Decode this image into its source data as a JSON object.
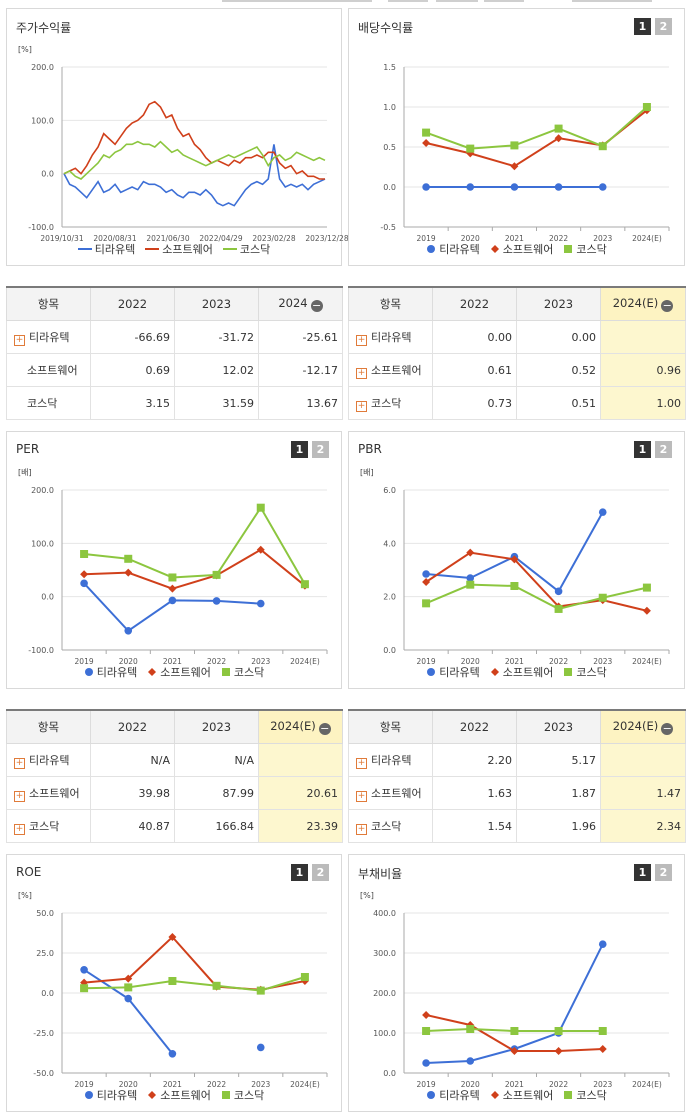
{
  "colors": {
    "tiratech": "#3d6fd6",
    "software": "#d0401b",
    "kosdaq": "#8cc63f"
  },
  "series_names": [
    "티라유텍",
    "소프트웨어",
    "코스닥"
  ],
  "stock_return": {
    "title": "주가수익률",
    "unit": "[%]",
    "yticks": [
      "200.0",
      "100.0",
      "0.0",
      "-100.0"
    ],
    "xticks": [
      "2019/10/31",
      "2020/08/31",
      "2021/06/30",
      "2022/04/29",
      "2023/02/28",
      "2023/12/28"
    ]
  },
  "dividend": {
    "title": "배당수익률",
    "btn1": "1",
    "btn2": "2",
    "yticks": [
      "1.5",
      "1.0",
      "0.5",
      "0.0",
      "-0.5"
    ],
    "xticks": [
      "2019",
      "2020",
      "2021",
      "2022",
      "2023",
      "2024(E)"
    ]
  },
  "per": {
    "title": "PER",
    "unit": "[배]",
    "btn1": "1",
    "btn2": "2",
    "yticks": [
      "200.0",
      "100.0",
      "0.0",
      "-100.0"
    ],
    "xticks": [
      "2019",
      "2020",
      "2021",
      "2022",
      "2023",
      "2024(E)"
    ]
  },
  "pbr": {
    "title": "PBR",
    "unit": "[배]",
    "btn1": "1",
    "btn2": "2",
    "yticks": [
      "6.0",
      "4.0",
      "2.0",
      "0.0"
    ],
    "xticks": [
      "2019",
      "2020",
      "2021",
      "2022",
      "2023",
      "2024(E)"
    ]
  },
  "roe": {
    "title": "ROE",
    "unit": "[%]",
    "btn1": "1",
    "btn2": "2",
    "yticks": [
      "50.0",
      "25.0",
      "0.0",
      "-25.0",
      "-50.0"
    ],
    "xticks": [
      "2019",
      "2020",
      "2021",
      "2022",
      "2023",
      "2024(E)"
    ]
  },
  "debt": {
    "title": "부채비율",
    "unit": "[%]",
    "btn1": "1",
    "btn2": "2",
    "yticks": [
      "400.0",
      "300.0",
      "200.0",
      "100.0",
      "0.0"
    ],
    "xticks": [
      "2019",
      "2020",
      "2021",
      "2022",
      "2023",
      "2024(E)"
    ]
  },
  "tables": {
    "t1": {
      "head": [
        "항목",
        "2022",
        "2023",
        "2024"
      ],
      "rows": [
        [
          "티라유텍",
          "-66.69",
          "-31.72",
          "-25.61"
        ],
        [
          "소프트웨어",
          "0.69",
          "12.02",
          "-12.17"
        ],
        [
          "코스닥",
          "3.15",
          "31.59",
          "13.67"
        ]
      ]
    },
    "t2": {
      "head": [
        "항목",
        "2022",
        "2023",
        "2024(E)"
      ],
      "rows": [
        [
          "티라유텍",
          "0.00",
          "0.00",
          ""
        ],
        [
          "소프트웨어",
          "0.61",
          "0.52",
          "0.96"
        ],
        [
          "코스닥",
          "0.73",
          "0.51",
          "1.00"
        ]
      ]
    },
    "t3": {
      "head": [
        "항목",
        "2022",
        "2023",
        "2024(E)"
      ],
      "rows": [
        [
          "티라유텍",
          "N/A",
          "N/A",
          ""
        ],
        [
          "소프트웨어",
          "39.98",
          "87.99",
          "20.61"
        ],
        [
          "코스닥",
          "40.87",
          "166.84",
          "23.39"
        ]
      ]
    },
    "t4": {
      "head": [
        "항목",
        "2022",
        "2023",
        "2024(E)"
      ],
      "rows": [
        [
          "티라유텍",
          "2.20",
          "5.17",
          ""
        ],
        [
          "소프트웨어",
          "1.63",
          "1.87",
          "1.47"
        ],
        [
          "코스닥",
          "1.54",
          "1.96",
          "2.34"
        ]
      ]
    }
  },
  "chart_data": [
    {
      "type": "line",
      "title": "주가수익률",
      "ylabel": "[%]",
      "ylim": [
        -100,
        200
      ],
      "x_ticks": [
        "2019/10/31",
        "2020/08/31",
        "2021/06/30",
        "2022/04/29",
        "2023/02/28",
        "2023/12/28"
      ],
      "series": [
        {
          "name": "티라유텍",
          "values": [
            0,
            -20,
            -25,
            -35,
            -45,
            -30,
            -15,
            -35,
            -30,
            -20,
            -35,
            -30,
            -25,
            -30,
            -15,
            -20,
            -20,
            -25,
            -35,
            -30,
            -40,
            -45,
            -35,
            -35,
            -40,
            -30,
            -40,
            -55,
            -60,
            -55,
            -60,
            -45,
            -30,
            -20,
            -15,
            -20,
            -10,
            55,
            -10,
            -25,
            -20,
            -25,
            -20,
            -30,
            -20,
            -15,
            -10
          ]
        },
        {
          "name": "소프트웨어",
          "values": [
            0,
            5,
            10,
            0,
            15,
            35,
            50,
            75,
            65,
            55,
            70,
            85,
            95,
            100,
            110,
            130,
            135,
            125,
            105,
            110,
            85,
            70,
            75,
            55,
            45,
            30,
            20,
            25,
            20,
            15,
            25,
            20,
            30,
            30,
            35,
            30,
            40,
            40,
            20,
            10,
            15,
            0,
            5,
            -5,
            -5,
            -10,
            -10
          ]
        },
        {
          "name": "코스닥",
          "values": [
            0,
            5,
            -5,
            -10,
            0,
            10,
            20,
            35,
            30,
            40,
            45,
            55,
            55,
            60,
            55,
            55,
            50,
            60,
            50,
            40,
            45,
            35,
            30,
            25,
            20,
            15,
            20,
            25,
            30,
            35,
            30,
            35,
            40,
            45,
            50,
            35,
            15,
            30,
            35,
            25,
            30,
            40,
            35,
            30,
            25,
            30,
            25
          ]
        }
      ]
    },
    {
      "type": "line",
      "title": "배당수익률",
      "ylim": [
        -0.5,
        1.5
      ],
      "categories": [
        "2019",
        "2020",
        "2021",
        "2022",
        "2023",
        "2024(E)"
      ],
      "series": [
        {
          "name": "티라유텍",
          "values": [
            0,
            0,
            0,
            0,
            0,
            null
          ]
        },
        {
          "name": "소프트웨어",
          "values": [
            0.55,
            0.42,
            0.26,
            0.61,
            0.52,
            0.96
          ]
        },
        {
          "name": "코스닥",
          "values": [
            0.68,
            0.48,
            0.52,
            0.73,
            0.51,
            1.0
          ]
        }
      ]
    },
    {
      "type": "line",
      "title": "PER",
      "ylabel": "[배]",
      "ylim": [
        -100,
        200
      ],
      "categories": [
        "2019",
        "2020",
        "2021",
        "2022",
        "2023",
        "2024(E)"
      ],
      "series": [
        {
          "name": "티라유텍",
          "values": [
            25,
            -64,
            -7,
            -8,
            -13,
            null
          ]
        },
        {
          "name": "소프트웨어",
          "values": [
            42,
            45,
            15,
            39.98,
            87.99,
            20.61
          ]
        },
        {
          "name": "코스닥",
          "values": [
            80,
            71,
            36,
            40.87,
            166.84,
            23.39
          ]
        }
      ]
    },
    {
      "type": "line",
      "title": "PBR",
      "ylabel": "[배]",
      "ylim": [
        0,
        6
      ],
      "categories": [
        "2019",
        "2020",
        "2021",
        "2022",
        "2023",
        "2024(E)"
      ],
      "series": [
        {
          "name": "티라유텍",
          "values": [
            2.85,
            2.7,
            3.5,
            2.2,
            5.17,
            null
          ]
        },
        {
          "name": "소프트웨어",
          "values": [
            2.55,
            3.65,
            3.4,
            1.63,
            1.87,
            1.47
          ]
        },
        {
          "name": "코스닥",
          "values": [
            1.75,
            2.45,
            2.4,
            1.54,
            1.96,
            2.34
          ]
        }
      ]
    },
    {
      "type": "line",
      "title": "ROE",
      "ylabel": "[%]",
      "ylim": [
        -50,
        50
      ],
      "categories": [
        "2019",
        "2020",
        "2021",
        "2022",
        "2023",
        "2024(E)"
      ],
      "series": [
        {
          "name": "티라유텍",
          "values": [
            14.5,
            -3.5,
            -38,
            null,
            -34,
            null
          ]
        },
        {
          "name": "소프트웨어",
          "values": [
            6.5,
            9,
            35,
            4,
            2,
            7.5
          ]
        },
        {
          "name": "코스닥",
          "values": [
            3,
            3.5,
            7.5,
            4.5,
            1.5,
            10
          ]
        }
      ]
    },
    {
      "type": "line",
      "title": "부채비율",
      "ylabel": "[%]",
      "ylim": [
        0,
        400
      ],
      "categories": [
        "2019",
        "2020",
        "2021",
        "2022",
        "2023",
        "2024(E)"
      ],
      "series": [
        {
          "name": "티라유텍",
          "values": [
            25,
            30,
            60,
            100,
            322,
            null
          ]
        },
        {
          "name": "소프트웨어",
          "values": [
            145,
            120,
            55,
            55,
            60,
            null
          ]
        },
        {
          "name": "코스닥",
          "values": [
            105,
            110,
            105,
            105,
            105,
            null
          ]
        }
      ]
    }
  ]
}
